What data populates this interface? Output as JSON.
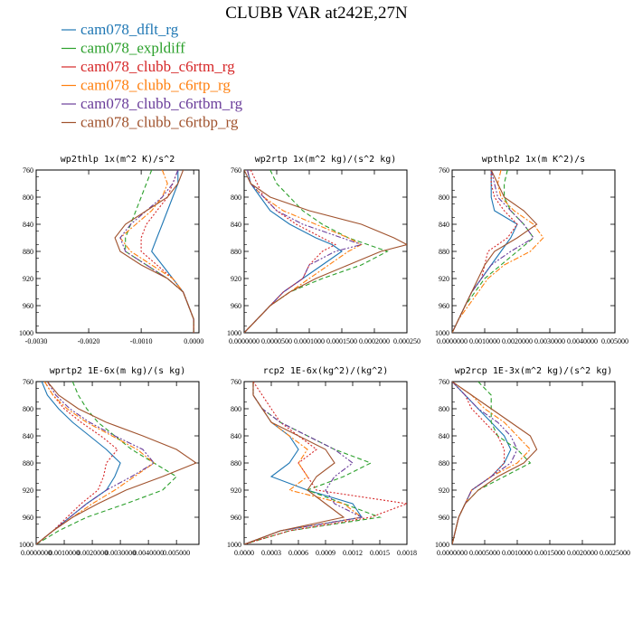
{
  "title": "CLUBB VAR at242E,27N",
  "legend": [
    {
      "name": "cam078_dflt_rg",
      "color": "#1f77b4",
      "dash": ""
    },
    {
      "name": "cam078_expldiff",
      "color": "#2ca02c",
      "dash": "5,3"
    },
    {
      "name": "cam078_clubb_c6rtm_rg",
      "color": "#d62728",
      "dash": "2,2"
    },
    {
      "name": "cam078_clubb_c6rtp_rg",
      "color": "#ff7f0e",
      "dash": "6,2,2,2"
    },
    {
      "name": "cam078_clubb_c6rtbm_rg",
      "color": "#6a3d9a",
      "dash": "6,2,2,2,2,2"
    },
    {
      "name": "cam078_clubb_c6rtbp_rg",
      "color": "#a0522d",
      "dash": ""
    }
  ],
  "chart_data": [
    {
      "type": "line",
      "title": "wp2thlp  1x(m^2 K)/s^2",
      "xlim": [
        -0.003,
        0.0001
      ],
      "ylim": [
        760,
        1000
      ],
      "xticks": [
        -0.003,
        -0.002,
        -0.001,
        0.0
      ],
      "xtick_labels": [
        "-0.0030",
        "-0.0020",
        "-0.0010",
        "0.0000"
      ],
      "yticks": [
        760,
        800,
        840,
        880,
        920,
        960,
        1000
      ],
      "y": [
        760,
        780,
        800,
        820,
        840,
        860,
        880,
        900,
        920,
        940,
        960,
        980,
        1000
      ],
      "series": [
        {
          "name": "cam078_dflt_rg",
          "values": [
            -0.0003,
            -0.0003,
            -0.0004,
            -0.0005,
            -0.0006,
            -0.0007,
            -0.0008,
            -0.0006,
            -0.0004,
            -0.0002,
            -0.0001,
            0.0,
            0.0
          ]
        },
        {
          "name": "cam078_expldiff",
          "values": [
            -0.0008,
            -0.0009,
            -0.001,
            -0.0011,
            -0.0012,
            -0.0013,
            -0.0013,
            -0.0009,
            -0.0005,
            -0.0002,
            -0.0001,
            0.0,
            0.0
          ]
        },
        {
          "name": "cam078_clubb_c6rtm_rg",
          "values": [
            -0.0003,
            -0.0004,
            -0.0005,
            -0.0007,
            -0.0009,
            -0.001,
            -0.001,
            -0.0007,
            -0.0004,
            -0.0002,
            -0.0001,
            0.0,
            0.0
          ]
        },
        {
          "name": "cam078_clubb_c6rtp_rg",
          "values": [
            -0.0006,
            -0.0005,
            -0.0006,
            -0.0008,
            -0.0011,
            -0.0014,
            -0.0012,
            -0.0008,
            -0.0004,
            -0.0002,
            -0.0001,
            0.0,
            0.0
          ]
        },
        {
          "name": "cam078_clubb_c6rtbm_rg",
          "values": [
            -0.0003,
            -0.0004,
            -0.0006,
            -0.0009,
            -0.0012,
            -0.0014,
            -0.0013,
            -0.0009,
            -0.0005,
            -0.0002,
            -0.0001,
            0.0,
            0.0
          ]
        },
        {
          "name": "cam078_clubb_c6rtbp_rg",
          "values": [
            -0.0002,
            -0.0003,
            -0.0005,
            -0.0009,
            -0.0013,
            -0.0015,
            -0.0014,
            -0.001,
            -0.0005,
            -0.0002,
            -0.0001,
            0.0,
            0.0
          ]
        }
      ]
    },
    {
      "type": "line",
      "title": "wp2rtp  1x(m^2 kg)/(s^2 kg)",
      "xlim": [
        0,
        0.00025
      ],
      "ylim": [
        760,
        1000
      ],
      "xticks": [
        0,
        5e-05,
        0.0001,
        0.00015,
        0.0002,
        0.00025
      ],
      "xtick_labels": [
        "0.0000000",
        "0.0000500",
        "0.0001000",
        "0.0001500",
        "0.0002000",
        "0.000250"
      ],
      "yticks": [
        760,
        800,
        840,
        880,
        920,
        960,
        1000
      ],
      "y": [
        760,
        780,
        800,
        820,
        840,
        860,
        870,
        880,
        900,
        920,
        940,
        960,
        980,
        1000
      ],
      "series": [
        {
          "name": "cam078_dflt_rg",
          "values": [
            5e-06,
            1e-05,
            2.5e-05,
            4e-05,
            7e-05,
            0.00011,
            0.000135,
            0.00015,
            0.00012,
            9e-05,
            6e-05,
            4e-05,
            2e-05,
            0.0
          ]
        },
        {
          "name": "cam078_expldiff",
          "values": [
            4e-05,
            5e-05,
            7e-05,
            9e-05,
            0.00012,
            0.00016,
            0.00019,
            0.00022,
            0.00018,
            0.00012,
            7e-05,
            4e-05,
            2e-05,
            0.0
          ]
        },
        {
          "name": "cam078_clubb_c6rtm_rg",
          "values": [
            1e-05,
            2e-05,
            3e-05,
            5e-05,
            8e-05,
            0.00012,
            0.00014,
            0.00012,
            0.0001,
            9e-05,
            6e-05,
            4e-05,
            2e-05,
            0.0
          ]
        },
        {
          "name": "cam078_clubb_c6rtp_rg",
          "values": [
            5e-06,
            1e-05,
            3e-05,
            6e-05,
            0.00011,
            0.00016,
            0.00018,
            0.00016,
            0.00013,
            0.0001,
            7e-05,
            4e-05,
            2e-05,
            0.0
          ]
        },
        {
          "name": "cam078_clubb_c6rtbm_rg",
          "values": [
            5e-06,
            1e-05,
            3e-05,
            5e-05,
            9e-05,
            0.00015,
            0.00018,
            0.00014,
            0.0001,
            9e-05,
            6e-05,
            4e-05,
            2e-05,
            0.0
          ]
        },
        {
          "name": "cam078_clubb_c6rtbp_rg",
          "values": [
            0.0,
            1e-05,
            4e-05,
            0.0001,
            0.00018,
            0.00023,
            0.00025,
            0.00021,
            0.00016,
            0.00011,
            7e-05,
            4e-05,
            2e-05,
            0.0
          ]
        }
      ]
    },
    {
      "type": "line",
      "title": "wpthlp2  1x(m K^2)/s",
      "xlim": [
        0,
        0.005
      ],
      "ylim": [
        760,
        1000
      ],
      "xticks": [
        0,
        0.001,
        0.002,
        0.003,
        0.004,
        0.005
      ],
      "xtick_labels": [
        "0.0000000",
        "0.0010000",
        "0.0020000",
        "0.0030000",
        "0.0040000",
        "0.005000"
      ],
      "yticks": [
        760,
        800,
        840,
        880,
        920,
        960,
        1000
      ],
      "y": [
        760,
        780,
        800,
        820,
        840,
        860,
        880,
        900,
        920,
        940,
        960,
        980,
        1000
      ],
      "series": [
        {
          "name": "cam078_dflt_rg",
          "values": [
            0.0012,
            0.0012,
            0.0012,
            0.0013,
            0.002,
            0.0018,
            0.0015,
            0.0012,
            0.0009,
            0.0006,
            0.0004,
            0.0002,
            0.0
          ]
        },
        {
          "name": "cam078_expldiff",
          "values": [
            0.0017,
            0.0016,
            0.0016,
            0.0018,
            0.0022,
            0.0025,
            0.002,
            0.0015,
            0.001,
            0.0007,
            0.0004,
            0.0002,
            0.0
          ]
        },
        {
          "name": "cam078_clubb_c6rtm_rg",
          "values": [
            0.0012,
            0.0012,
            0.0013,
            0.0016,
            0.002,
            0.0017,
            0.0011,
            0.001,
            0.0009,
            0.0006,
            0.0004,
            0.0002,
            0.0
          ]
        },
        {
          "name": "cam078_clubb_c6rtp_rg",
          "values": [
            0.0015,
            0.0014,
            0.0015,
            0.0019,
            0.0025,
            0.0028,
            0.0024,
            0.0016,
            0.0011,
            0.0008,
            0.0005,
            0.0002,
            0.0
          ]
        },
        {
          "name": "cam078_clubb_c6rtbm_rg",
          "values": [
            0.0012,
            0.0013,
            0.0014,
            0.0018,
            0.0022,
            0.0025,
            0.0018,
            0.0012,
            0.0009,
            0.0006,
            0.0004,
            0.0002,
            0.0
          ]
        },
        {
          "name": "cam078_clubb_c6rtbp_rg",
          "values": [
            0.0012,
            0.0014,
            0.0016,
            0.0022,
            0.0026,
            0.002,
            0.0013,
            0.001,
            0.0008,
            0.0006,
            0.0004,
            0.0002,
            0.0
          ]
        }
      ]
    },
    {
      "type": "line",
      "title": "wprtp2  1E-6x(m kg)/(s kg)",
      "xlim": [
        0,
        0.0058
      ],
      "ylim": [
        760,
        1000
      ],
      "xticks": [
        0,
        0.001,
        0.002,
        0.003,
        0.004,
        0.005
      ],
      "xtick_labels": [
        "0.0000000",
        "0.0010000",
        "0.0020000",
        "0.0030000",
        "0.0040000",
        "0.005000"
      ],
      "yticks": [
        760,
        800,
        840,
        880,
        920,
        960,
        1000
      ],
      "y": [
        760,
        780,
        800,
        820,
        840,
        860,
        880,
        900,
        920,
        940,
        960,
        980,
        1000
      ],
      "series": [
        {
          "name": "cam078_dflt_rg",
          "values": [
            0.0002,
            0.0004,
            0.0008,
            0.0013,
            0.0019,
            0.0025,
            0.003,
            0.0028,
            0.0025,
            0.0018,
            0.0012,
            0.0006,
            0.0
          ]
        },
        {
          "name": "cam078_expldiff",
          "values": [
            0.0013,
            0.0015,
            0.0018,
            0.0022,
            0.0028,
            0.0034,
            0.0042,
            0.005,
            0.0045,
            0.0032,
            0.0018,
            0.0008,
            0.0
          ]
        },
        {
          "name": "cam078_clubb_c6rtm_rg",
          "values": [
            0.0003,
            0.0006,
            0.001,
            0.0016,
            0.0023,
            0.0029,
            0.0025,
            0.0024,
            0.0022,
            0.0016,
            0.0011,
            0.0006,
            0.0
          ]
        },
        {
          "name": "cam078_clubb_c6rtp_rg",
          "values": [
            0.0003,
            0.0006,
            0.0011,
            0.0018,
            0.0027,
            0.0036,
            0.0042,
            0.0035,
            0.0028,
            0.002,
            0.0013,
            0.0006,
            0.0
          ]
        },
        {
          "name": "cam078_clubb_c6rtbm_rg",
          "values": [
            0.0004,
            0.0007,
            0.0012,
            0.0019,
            0.0028,
            0.0038,
            0.0042,
            0.0034,
            0.0025,
            0.0018,
            0.0012,
            0.0006,
            0.0
          ]
        },
        {
          "name": "cam078_clubb_c6rtbp_rg",
          "values": [
            0.0004,
            0.0008,
            0.0015,
            0.0025,
            0.0038,
            0.005,
            0.0057,
            0.0045,
            0.0032,
            0.0022,
            0.0013,
            0.0006,
            0.0
          ]
        }
      ]
    },
    {
      "type": "line",
      "title": "rcp2  1E-6x(kg^2)/(kg^2)",
      "xlim": [
        0,
        0.0018
      ],
      "ylim": [
        760,
        1000
      ],
      "xticks": [
        0,
        0.0003,
        0.0006,
        0.0009,
        0.0012,
        0.0015,
        0.0018
      ],
      "xtick_labels": [
        "0.0000",
        "0.0003",
        "0.0006",
        "0.0009",
        "0.0012",
        "0.0015",
        "0.0018"
      ],
      "yticks": [
        760,
        800,
        840,
        880,
        920,
        960,
        1000
      ],
      "y": [
        760,
        780,
        800,
        820,
        840,
        860,
        880,
        900,
        920,
        940,
        960,
        980,
        1000
      ],
      "series": [
        {
          "name": "cam078_dflt_rg",
          "values": [
            0.0001,
            0.0001,
            0.0002,
            0.0003,
            0.0005,
            0.0006,
            0.0005,
            0.0003,
            0.0007,
            0.0012,
            0.0013,
            0.0004,
            0.0
          ]
        },
        {
          "name": "cam078_expldiff",
          "values": [
            0.0001,
            0.0001,
            0.0002,
            0.0004,
            0.0007,
            0.001,
            0.0014,
            0.0011,
            0.0007,
            0.0011,
            0.0015,
            0.0005,
            0.0
          ]
        },
        {
          "name": "cam078_clubb_c6rtm_rg",
          "values": [
            0.0001,
            0.0002,
            0.0003,
            0.0004,
            0.0006,
            0.0008,
            0.0006,
            0.0007,
            0.0008,
            0.0018,
            0.0014,
            0.0005,
            0.0
          ]
        },
        {
          "name": "cam078_clubb_c6rtp_rg",
          "values": [
            0.0001,
            0.0001,
            0.0002,
            0.0003,
            0.0005,
            0.0007,
            0.0006,
            0.0007,
            0.0005,
            0.0011,
            0.0013,
            0.0004,
            0.0
          ]
        },
        {
          "name": "cam078_clubb_c6rtbm_rg",
          "values": [
            0.0001,
            0.0001,
            0.0002,
            0.0004,
            0.0007,
            0.001,
            0.0012,
            0.001,
            0.0009,
            0.001,
            0.0013,
            0.0004,
            0.0
          ]
        },
        {
          "name": "cam078_clubb_c6rtbp_rg",
          "values": [
            0.0001,
            0.0001,
            0.0002,
            0.0003,
            0.0006,
            0.0009,
            0.001,
            0.0008,
            0.0007,
            0.0009,
            0.0011,
            0.0004,
            0.0
          ]
        }
      ]
    },
    {
      "type": "line",
      "title": "wp2rcp  1E-3x(m^2 kg)/(s^2 kg)",
      "xlim": [
        0,
        0.0025
      ],
      "ylim": [
        760,
        1000
      ],
      "xticks": [
        0,
        0.0005,
        0.001,
        0.0015,
        0.002,
        0.0025
      ],
      "xtick_labels": [
        "0.0000000",
        "0.0005000",
        "0.0010000",
        "0.0015000",
        "0.0020000",
        "0.0025000"
      ],
      "yticks": [
        760,
        800,
        840,
        880,
        920,
        960,
        1000
      ],
      "y": [
        760,
        780,
        800,
        820,
        840,
        860,
        880,
        900,
        920,
        940,
        960,
        980,
        1000
      ],
      "series": [
        {
          "name": "cam078_dflt_rg",
          "values": [
            0.0,
            0.0002,
            0.0004,
            0.0006,
            0.0008,
            0.0009,
            0.0008,
            0.0006,
            0.0003,
            0.0002,
            0.0001,
            5e-05,
            0.0
          ]
        },
        {
          "name": "cam078_expldiff",
          "values": [
            0.0004,
            0.0006,
            0.0006,
            0.0006,
            0.0007,
            0.001,
            0.0012,
            0.0008,
            0.0004,
            0.0002,
            0.0001,
            5e-05,
            0.0
          ]
        },
        {
          "name": "cam078_clubb_c6rtm_rg",
          "values": [
            0.0,
            0.0002,
            0.0003,
            0.0005,
            0.0007,
            0.0008,
            0.0008,
            0.0006,
            0.0003,
            0.0002,
            0.0001,
            5e-05,
            0.0
          ]
        },
        {
          "name": "cam078_clubb_c6rtp_rg",
          "values": [
            0.0,
            0.0003,
            0.0005,
            0.0008,
            0.001,
            0.0012,
            0.001,
            0.0006,
            0.0003,
            0.0002,
            0.0001,
            5e-05,
            0.0
          ]
        },
        {
          "name": "cam078_clubb_c6rtbm_rg",
          "values": [
            0.0,
            0.0002,
            0.0004,
            0.0007,
            0.0009,
            0.001,
            0.0009,
            0.0006,
            0.0003,
            0.0002,
            0.0001,
            5e-05,
            0.0
          ]
        },
        {
          "name": "cam078_clubb_c6rtbp_rg",
          "values": [
            0.0,
            0.0003,
            0.0006,
            0.0009,
            0.0012,
            0.0013,
            0.0011,
            0.0007,
            0.0004,
            0.0002,
            0.0001,
            5e-05,
            0.0
          ]
        }
      ]
    }
  ]
}
